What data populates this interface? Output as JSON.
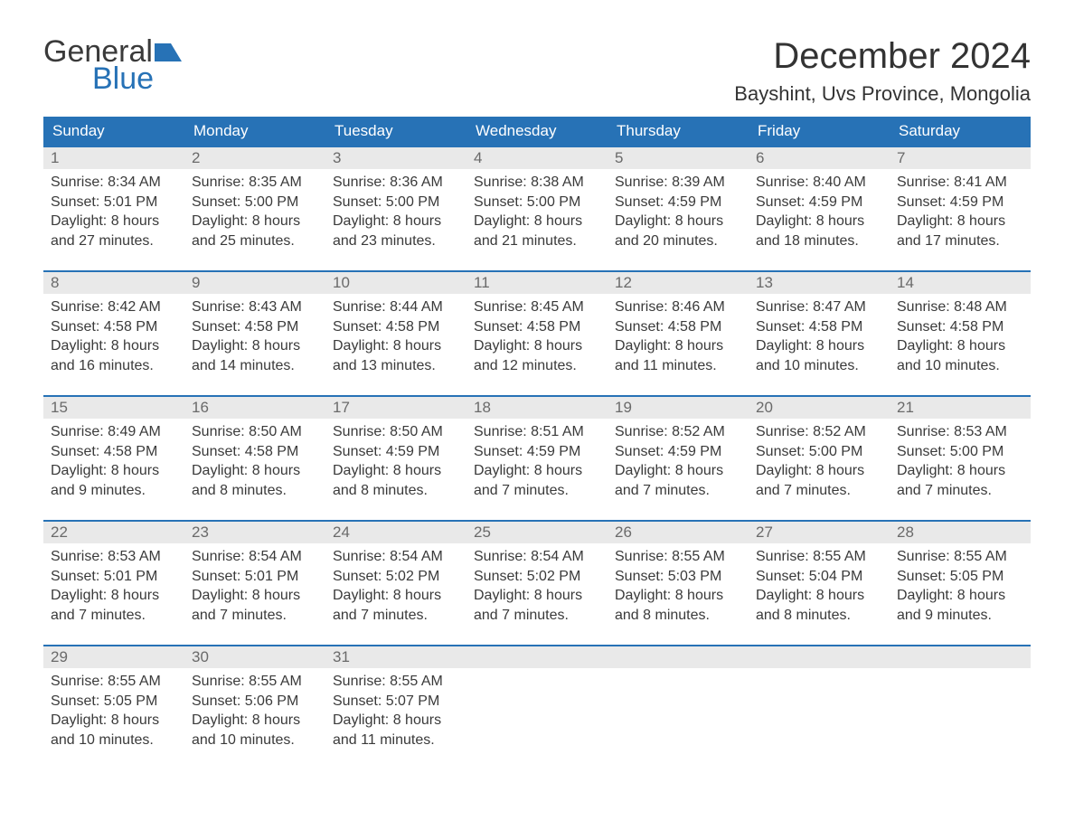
{
  "logo": {
    "word1": "General",
    "word2": "Blue"
  },
  "title": "December 2024",
  "location": "Bayshint, Uvs Province, Mongolia",
  "weekdays": [
    "Sunday",
    "Monday",
    "Tuesday",
    "Wednesday",
    "Thursday",
    "Friday",
    "Saturday"
  ],
  "colors": {
    "header_bg": "#2772b6",
    "header_text": "#ffffff",
    "daystrip_bg": "#e9e9e9",
    "daystrip_text": "#6a6a6a",
    "body_text": "#3a3a3a",
    "row_border": "#2772b6",
    "logo_blue": "#2772b6",
    "page_bg": "#ffffff"
  },
  "fonts": {
    "title_size_pt": 30,
    "location_size_pt": 16,
    "header_size_pt": 12,
    "daynum_size_pt": 12,
    "body_size_pt": 12
  },
  "labels": {
    "sunrise": "Sunrise:",
    "sunset": "Sunset:",
    "daylight": "Daylight:"
  },
  "weeks": [
    [
      {
        "n": "1",
        "sunrise": "8:34 AM",
        "sunset": "5:01 PM",
        "daylight": "8 hours and 27 minutes."
      },
      {
        "n": "2",
        "sunrise": "8:35 AM",
        "sunset": "5:00 PM",
        "daylight": "8 hours and 25 minutes."
      },
      {
        "n": "3",
        "sunrise": "8:36 AM",
        "sunset": "5:00 PM",
        "daylight": "8 hours and 23 minutes."
      },
      {
        "n": "4",
        "sunrise": "8:38 AM",
        "sunset": "5:00 PM",
        "daylight": "8 hours and 21 minutes."
      },
      {
        "n": "5",
        "sunrise": "8:39 AM",
        "sunset": "4:59 PM",
        "daylight": "8 hours and 20 minutes."
      },
      {
        "n": "6",
        "sunrise": "8:40 AM",
        "sunset": "4:59 PM",
        "daylight": "8 hours and 18 minutes."
      },
      {
        "n": "7",
        "sunrise": "8:41 AM",
        "sunset": "4:59 PM",
        "daylight": "8 hours and 17 minutes."
      }
    ],
    [
      {
        "n": "8",
        "sunrise": "8:42 AM",
        "sunset": "4:58 PM",
        "daylight": "8 hours and 16 minutes."
      },
      {
        "n": "9",
        "sunrise": "8:43 AM",
        "sunset": "4:58 PM",
        "daylight": "8 hours and 14 minutes."
      },
      {
        "n": "10",
        "sunrise": "8:44 AM",
        "sunset": "4:58 PM",
        "daylight": "8 hours and 13 minutes."
      },
      {
        "n": "11",
        "sunrise": "8:45 AM",
        "sunset": "4:58 PM",
        "daylight": "8 hours and 12 minutes."
      },
      {
        "n": "12",
        "sunrise": "8:46 AM",
        "sunset": "4:58 PM",
        "daylight": "8 hours and 11 minutes."
      },
      {
        "n": "13",
        "sunrise": "8:47 AM",
        "sunset": "4:58 PM",
        "daylight": "8 hours and 10 minutes."
      },
      {
        "n": "14",
        "sunrise": "8:48 AM",
        "sunset": "4:58 PM",
        "daylight": "8 hours and 10 minutes."
      }
    ],
    [
      {
        "n": "15",
        "sunrise": "8:49 AM",
        "sunset": "4:58 PM",
        "daylight": "8 hours and 9 minutes."
      },
      {
        "n": "16",
        "sunrise": "8:50 AM",
        "sunset": "4:58 PM",
        "daylight": "8 hours and 8 minutes."
      },
      {
        "n": "17",
        "sunrise": "8:50 AM",
        "sunset": "4:59 PM",
        "daylight": "8 hours and 8 minutes."
      },
      {
        "n": "18",
        "sunrise": "8:51 AM",
        "sunset": "4:59 PM",
        "daylight": "8 hours and 7 minutes."
      },
      {
        "n": "19",
        "sunrise": "8:52 AM",
        "sunset": "4:59 PM",
        "daylight": "8 hours and 7 minutes."
      },
      {
        "n": "20",
        "sunrise": "8:52 AM",
        "sunset": "5:00 PM",
        "daylight": "8 hours and 7 minutes."
      },
      {
        "n": "21",
        "sunrise": "8:53 AM",
        "sunset": "5:00 PM",
        "daylight": "8 hours and 7 minutes."
      }
    ],
    [
      {
        "n": "22",
        "sunrise": "8:53 AM",
        "sunset": "5:01 PM",
        "daylight": "8 hours and 7 minutes."
      },
      {
        "n": "23",
        "sunrise": "8:54 AM",
        "sunset": "5:01 PM",
        "daylight": "8 hours and 7 minutes."
      },
      {
        "n": "24",
        "sunrise": "8:54 AM",
        "sunset": "5:02 PM",
        "daylight": "8 hours and 7 minutes."
      },
      {
        "n": "25",
        "sunrise": "8:54 AM",
        "sunset": "5:02 PM",
        "daylight": "8 hours and 7 minutes."
      },
      {
        "n": "26",
        "sunrise": "8:55 AM",
        "sunset": "5:03 PM",
        "daylight": "8 hours and 8 minutes."
      },
      {
        "n": "27",
        "sunrise": "8:55 AM",
        "sunset": "5:04 PM",
        "daylight": "8 hours and 8 minutes."
      },
      {
        "n": "28",
        "sunrise": "8:55 AM",
        "sunset": "5:05 PM",
        "daylight": "8 hours and 9 minutes."
      }
    ],
    [
      {
        "n": "29",
        "sunrise": "8:55 AM",
        "sunset": "5:05 PM",
        "daylight": "8 hours and 10 minutes."
      },
      {
        "n": "30",
        "sunrise": "8:55 AM",
        "sunset": "5:06 PM",
        "daylight": "8 hours and 10 minutes."
      },
      {
        "n": "31",
        "sunrise": "8:55 AM",
        "sunset": "5:07 PM",
        "daylight": "8 hours and 11 minutes."
      },
      null,
      null,
      null,
      null
    ]
  ]
}
